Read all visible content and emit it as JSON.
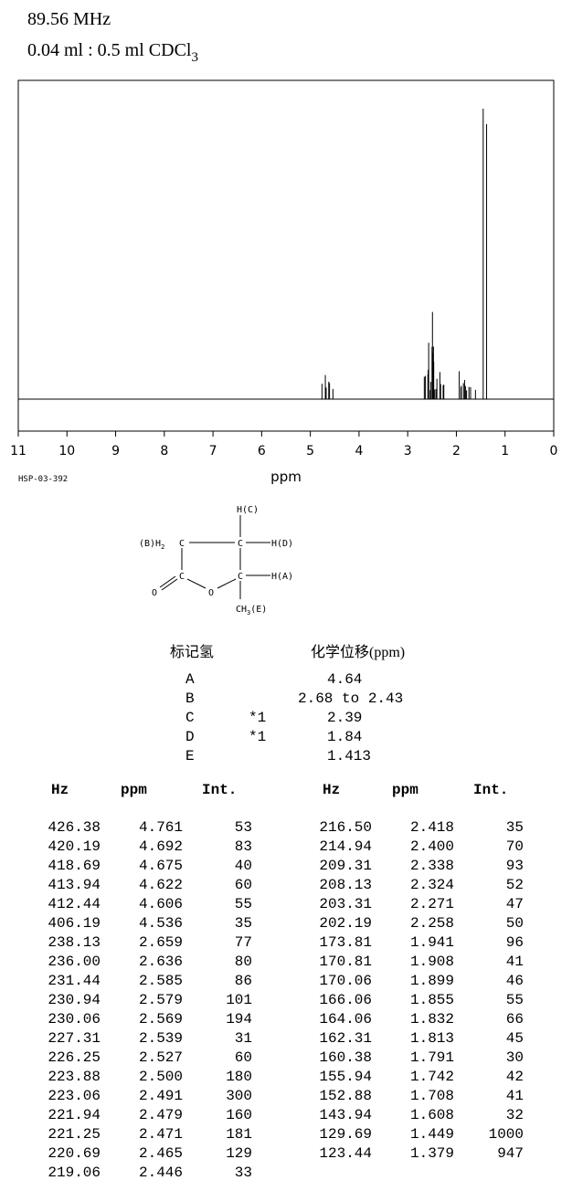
{
  "header": {
    "frequency": "89.56 MHz",
    "concentration_main": "0.04 ml : 0.5 ml CDCl",
    "concentration_sub": "3"
  },
  "chart_data": {
    "type": "line",
    "title": "",
    "xlabel": "ppm",
    "ylabel": "",
    "xlim": [
      11,
      0
    ],
    "x_ticks": [
      11,
      10,
      9,
      8,
      7,
      6,
      5,
      4,
      3,
      2,
      1,
      0
    ],
    "y_max_intensity": 1000,
    "grid": false,
    "spectrum_id": "HSP-03-392",
    "peaks": [
      {
        "hz": 426.38,
        "ppm": 4.761,
        "int": 53
      },
      {
        "hz": 420.19,
        "ppm": 4.692,
        "int": 83
      },
      {
        "hz": 418.69,
        "ppm": 4.675,
        "int": 40
      },
      {
        "hz": 413.94,
        "ppm": 4.622,
        "int": 60
      },
      {
        "hz": 412.44,
        "ppm": 4.606,
        "int": 55
      },
      {
        "hz": 406.19,
        "ppm": 4.536,
        "int": 35
      },
      {
        "hz": 238.13,
        "ppm": 2.659,
        "int": 77
      },
      {
        "hz": 236.0,
        "ppm": 2.636,
        "int": 80
      },
      {
        "hz": 231.44,
        "ppm": 2.585,
        "int": 86
      },
      {
        "hz": 230.94,
        "ppm": 2.579,
        "int": 101
      },
      {
        "hz": 230.06,
        "ppm": 2.569,
        "int": 194
      },
      {
        "hz": 227.31,
        "ppm": 2.539,
        "int": 31
      },
      {
        "hz": 226.25,
        "ppm": 2.527,
        "int": 60
      },
      {
        "hz": 223.88,
        "ppm": 2.5,
        "int": 180
      },
      {
        "hz": 223.06,
        "ppm": 2.491,
        "int": 300
      },
      {
        "hz": 221.94,
        "ppm": 2.479,
        "int": 160
      },
      {
        "hz": 221.25,
        "ppm": 2.471,
        "int": 181
      },
      {
        "hz": 220.69,
        "ppm": 2.465,
        "int": 129
      },
      {
        "hz": 219.06,
        "ppm": 2.446,
        "int": 33
      },
      {
        "hz": 216.5,
        "ppm": 2.418,
        "int": 35
      },
      {
        "hz": 214.94,
        "ppm": 2.4,
        "int": 70
      },
      {
        "hz": 209.31,
        "ppm": 2.338,
        "int": 93
      },
      {
        "hz": 208.13,
        "ppm": 2.324,
        "int": 52
      },
      {
        "hz": 203.31,
        "ppm": 2.271,
        "int": 47
      },
      {
        "hz": 202.19,
        "ppm": 2.258,
        "int": 50
      },
      {
        "hz": 173.81,
        "ppm": 1.941,
        "int": 96
      },
      {
        "hz": 170.81,
        "ppm": 1.908,
        "int": 41
      },
      {
        "hz": 170.06,
        "ppm": 1.899,
        "int": 46
      },
      {
        "hz": 166.06,
        "ppm": 1.855,
        "int": 55
      },
      {
        "hz": 164.06,
        "ppm": 1.832,
        "int": 66
      },
      {
        "hz": 162.31,
        "ppm": 1.813,
        "int": 45
      },
      {
        "hz": 160.38,
        "ppm": 1.791,
        "int": 30
      },
      {
        "hz": 155.94,
        "ppm": 1.742,
        "int": 42
      },
      {
        "hz": 152.88,
        "ppm": 1.708,
        "int": 41
      },
      {
        "hz": 143.94,
        "ppm": 1.608,
        "int": 32
      },
      {
        "hz": 129.69,
        "ppm": 1.449,
        "int": 1000
      },
      {
        "hz": 123.44,
        "ppm": 1.379,
        "int": 947
      }
    ]
  },
  "structure": {
    "labels": [
      "H(C)",
      "(B)H",
      "2",
      "C",
      "C",
      "H(D)",
      "C",
      "O",
      "C",
      "H(A)",
      "O",
      "CH",
      "3",
      "(E)"
    ]
  },
  "assignment_table": {
    "header_label": "标记氢",
    "header_shift": "化学位移(ppm)",
    "rows": [
      {
        "label": "A",
        "note": "",
        "shift": "4.64"
      },
      {
        "label": "B",
        "note": "",
        "shift": "2.68 to 2.43"
      },
      {
        "label": "C",
        "note": "*1",
        "shift": "2.39"
      },
      {
        "label": "D",
        "note": "*1",
        "shift": "1.84"
      },
      {
        "label": "E",
        "note": "",
        "shift": "1.413"
      }
    ]
  },
  "peak_table": {
    "headers": [
      "Hz",
      "ppm",
      "Int."
    ]
  }
}
